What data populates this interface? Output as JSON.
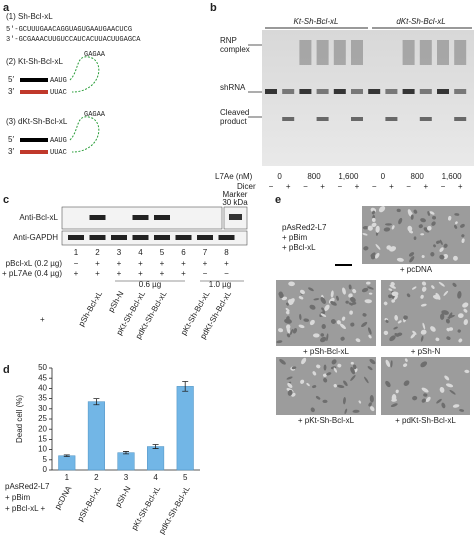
{
  "panel_a": {
    "label": "a",
    "items": [
      {
        "title": "(1) Sh-Bcl-xL",
        "strand_top": "5′-GCUUUGAACAGGUAGUGAAUGAACUCG",
        "strand_bottom": "3′-GCGAAACUUGUCCAUCACUUACUUGAGCA"
      },
      {
        "title": "(2) Kt-Sh-Bcl-xL",
        "five": "5′",
        "three": "3′",
        "stem_top": "AAUG",
        "stem_bottom": "UUAC",
        "loop": "GAGAA"
      },
      {
        "title": "(3) dKt-Sh-Bcl-xL",
        "five": "5′",
        "three": "3′",
        "stem_top": "AAUG",
        "stem_bottom": "UUAC",
        "loop": "GAGAA"
      }
    ]
  },
  "panel_b": {
    "label": "b",
    "headers": [
      "Kt-Sh-Bcl-xL",
      "dKt-Sh-Bcl-xL"
    ],
    "bands": [
      [
        "RNP",
        "complex"
      ],
      [
        "shRNA"
      ],
      [
        "Cleaved",
        "product"
      ]
    ],
    "l7ae_label": "L7Ae (nM)",
    "l7ae": [
      "0",
      "800",
      "1,600",
      "0",
      "800",
      "1,600"
    ],
    "dicer_label": "Dicer",
    "dicer": [
      "−",
      "+",
      "−",
      "+",
      "−",
      "+",
      "−",
      "+",
      "−",
      "+",
      "−",
      "+"
    ]
  },
  "panel_c": {
    "label": "c",
    "rows": [
      "Anti-Bcl-xL",
      "Anti-GAPDH"
    ],
    "marker": [
      "Marker",
      "30 kDa"
    ],
    "lanes": [
      "1",
      "2",
      "3",
      "4",
      "5",
      "6",
      "7",
      "8"
    ],
    "pbcl_label": "pBcl-xL (0.2 µg)",
    "pbcl": [
      "−",
      "+",
      "+",
      "+",
      "+",
      "+",
      "+",
      "+"
    ],
    "pl7_label": "+ pL7Ae (0.4 µg)",
    "pl7": [
      "+",
      "+",
      "+",
      "+",
      "+",
      "+",
      "−",
      "−"
    ],
    "doses": [
      "0.6 µg",
      "1.0 µg"
    ],
    "samples": [
      "pSh-Bcl-xL",
      "pSh-N",
      "pKt-Sh-Bcl-xL",
      "pdKt-Sh-Bcl-xL",
      "pKt-Sh-Bcl-xL",
      "pdKt-Sh-Bcl-xL"
    ],
    "plus": "+"
  },
  "chart_data": {
    "type": "bar",
    "label": "d",
    "y_label": "Dead cell (%)",
    "categories": [
      "1",
      "2",
      "3",
      "4",
      "5"
    ],
    "sample_labels": [
      "pcDNA",
      "pSh-Bcl-xL",
      "pSh-N",
      "pKt-Sh-Bcl-xL",
      "pdKt-Sh-Bcl-xL"
    ],
    "values": [
      7,
      33.5,
      8.5,
      11.5,
      41
    ],
    "errors": [
      0.4,
      1.5,
      0.6,
      1.0,
      2.4
    ],
    "color": "#72b6e6",
    "ylim": [
      0,
      50
    ],
    "yticks": [
      0,
      5,
      10,
      15,
      20,
      25,
      30,
      35,
      40,
      45,
      50
    ],
    "footer": [
      "pAsRed2-L7",
      "+ pBim",
      "+ pBcl-xL +"
    ]
  },
  "panel_e": {
    "label": "e",
    "legend": [
      "pAsRed2-L7",
      "+ pBim",
      "+ pBcl-xL"
    ],
    "captions": [
      "+ pcDNA",
      "+ pSh-Bcl-xL",
      "+ pSh-N",
      "+ pKt-Sh-Bcl-xL",
      "+ pdKt-Sh-Bcl-xL"
    ]
  }
}
